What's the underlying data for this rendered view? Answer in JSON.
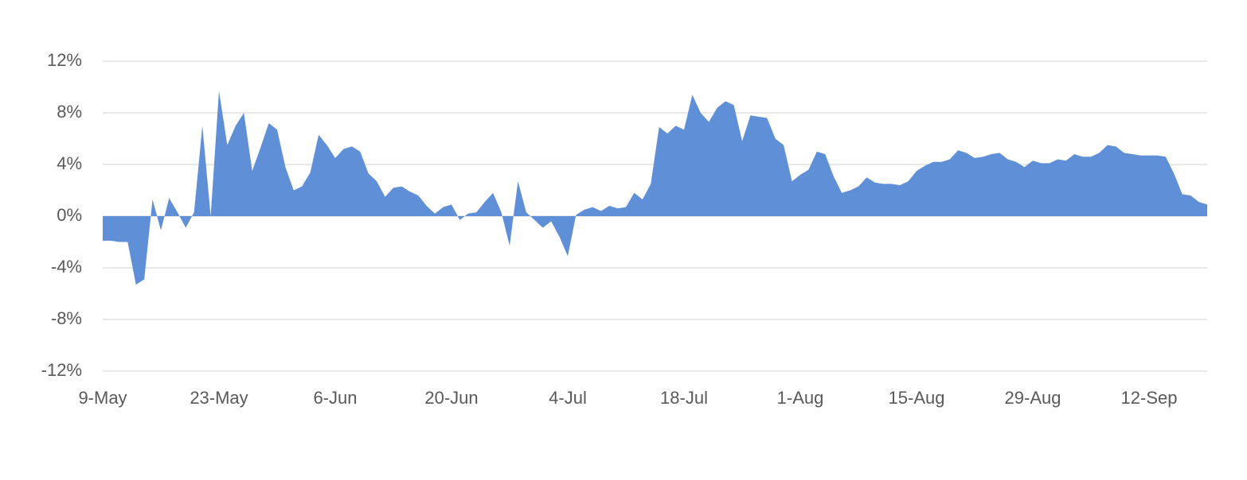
{
  "chart_data": {
    "type": "area",
    "categories": [
      "9-May",
      null,
      null,
      null,
      null,
      null,
      null,
      null,
      null,
      null,
      null,
      null,
      null,
      null,
      "23-May",
      null,
      null,
      null,
      null,
      null,
      null,
      null,
      null,
      null,
      null,
      null,
      null,
      null,
      "6-Jun",
      null,
      null,
      null,
      null,
      null,
      null,
      null,
      null,
      null,
      null,
      null,
      null,
      null,
      "20-Jun",
      null,
      null,
      null,
      null,
      null,
      null,
      null,
      null,
      null,
      null,
      null,
      null,
      null,
      "4-Jul",
      null,
      null,
      null,
      null,
      null,
      null,
      null,
      null,
      null,
      null,
      null,
      null,
      null,
      "18-Jul",
      null,
      null,
      null,
      null,
      null,
      null,
      null,
      null,
      null,
      null,
      null,
      null,
      null,
      "1-Aug",
      null,
      null,
      null,
      null,
      null,
      null,
      null,
      null,
      null,
      null,
      null,
      null,
      null,
      "15-Aug",
      null,
      null,
      null,
      null,
      null,
      null,
      null,
      null,
      null,
      null,
      null,
      null,
      null,
      "29-Aug",
      null,
      null,
      null,
      null,
      null,
      null,
      null,
      null,
      null,
      null,
      null,
      null,
      null,
      "12-Sep",
      null,
      null,
      null,
      null,
      null,
      null,
      null
    ],
    "values": [
      -1.9,
      -1.9,
      -2.0,
      -2.0,
      -5.3,
      -4.9,
      1.3,
      -1.1,
      1.4,
      0.3,
      -0.9,
      0.3,
      7.0,
      0,
      9.7,
      5.5,
      7.0,
      8.0,
      3.5,
      5.3,
      7.2,
      6.7,
      3.8,
      2.0,
      2.3,
      3.4,
      6.3,
      5.5,
      4.5,
      5.2,
      5.4,
      5.0,
      3.3,
      2.7,
      1.5,
      2.2,
      2.3,
      1.9,
      1.6,
      0.8,
      0.2,
      0.7,
      0.9,
      -0.3,
      0.2,
      0.3,
      1.1,
      1.8,
      0.3,
      -2.3,
      2.7,
      0.3,
      -0.3,
      -0.9,
      -0.4,
      -1.6,
      -3.1,
      0.1,
      0.5,
      0.7,
      0.4,
      0.8,
      0.6,
      0.7,
      1.8,
      1.3,
      2.5,
      6.9,
      6.4,
      7.0,
      6.7,
      9.4,
      8.0,
      7.3,
      8.4,
      8.9,
      8.6,
      5.8,
      7.8,
      7.7,
      7.6,
      6.0,
      5.5,
      2.7,
      3.2,
      3.6,
      5.0,
      4.8,
      3.1,
      1.8,
      2.0,
      2.3,
      3.0,
      2.6,
      2.5,
      2.5,
      2.4,
      2.7,
      3.5,
      3.9,
      4.2,
      4.2,
      4.4,
      5.1,
      4.9,
      4.5,
      4.6,
      4.8,
      4.9,
      4.4,
      4.2,
      3.8,
      4.3,
      4.1,
      4.1,
      4.4,
      4.3,
      4.8,
      4.6,
      4.6,
      4.9,
      5.5,
      5.4,
      4.9,
      4.8,
      4.7,
      4.7,
      4.7,
      4.6,
      3.3,
      1.7,
      1.6,
      1.1,
      0.9
    ],
    "color": "#5f8fd6",
    "ylim": [
      -12,
      12
    ],
    "yticks": [
      {
        "value": -12,
        "label": "-12%"
      },
      {
        "value": -8,
        "label": "-8%"
      },
      {
        "value": -4,
        "label": "-4%"
      },
      {
        "value": 0,
        "label": "0%"
      },
      {
        "value": 4,
        "label": "4%"
      },
      {
        "value": 8,
        "label": "8%"
      },
      {
        "value": 12,
        "label": "12%"
      }
    ],
    "grid": true
  }
}
